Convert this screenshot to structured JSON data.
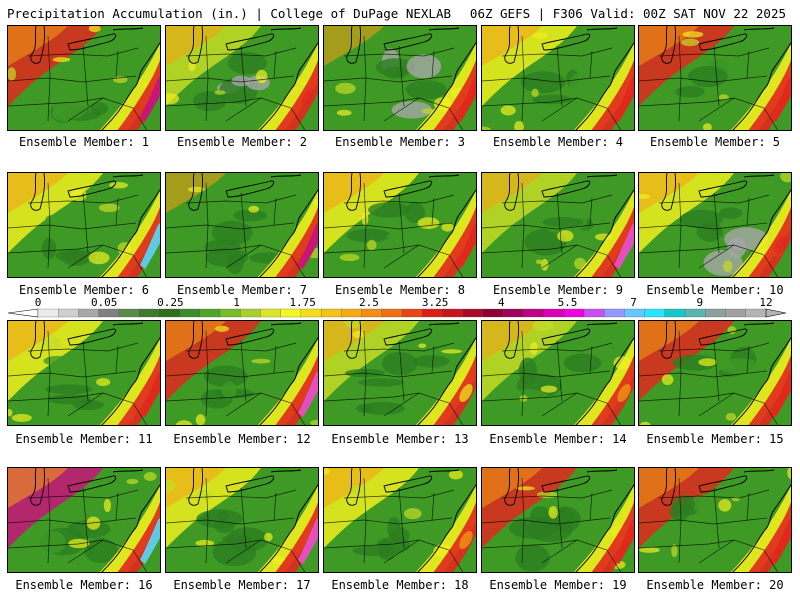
{
  "header": {
    "left": "Precipitation Accumulation (in.) | College of DuPage NEXLAB",
    "right": "06Z GEFS | F306 Valid: 00Z SAT NOV 22 2025"
  },
  "member_label_prefix": "Ensemble Member: ",
  "members": [
    {
      "label": "Ensemble Member: 1",
      "number": 1,
      "dominant": "red/orange west, green central, magenta offshore"
    },
    {
      "label": "Ensemble Member: 2",
      "number": 2,
      "dominant": "green with gray central"
    },
    {
      "label": "Ensemble Member: 3",
      "number": 3,
      "dominant": "green with gray, red southeast"
    },
    {
      "label": "Ensemble Member: 4",
      "number": 4,
      "dominant": "green/yellow, red northeast"
    },
    {
      "label": "Ensemble Member: 5",
      "number": 5,
      "dominant": "red north, green central"
    },
    {
      "label": "Ensemble Member: 6",
      "number": 6,
      "dominant": "yellow north, green south, cyan offshore"
    },
    {
      "label": "Ensemble Member: 7",
      "number": 7,
      "dominant": "green, magenta offshore"
    },
    {
      "label": "Ensemble Member: 8",
      "number": 8,
      "dominant": "green/yellow, red southeast"
    },
    {
      "label": "Ensemble Member: 9",
      "number": 9,
      "dominant": "yellow/green, magenta northeast"
    },
    {
      "label": "Ensemble Member: 10",
      "number": 10,
      "dominant": "green with gray central, yellow north"
    },
    {
      "label": "Ensemble Member: 11",
      "number": 11,
      "dominant": "green/yellow, red southeast"
    },
    {
      "label": "Ensemble Member: 12",
      "number": 12,
      "dominant": "red north, green central, magenta offshore"
    },
    {
      "label": "Ensemble Member: 13",
      "number": 13,
      "dominant": "green, yellow east"
    },
    {
      "label": "Ensemble Member: 14",
      "number": 14,
      "dominant": "green with yellow"
    },
    {
      "label": "Ensemble Member: 15",
      "number": 15,
      "dominant": "yellow/red, green central"
    },
    {
      "label": "Ensemble Member: 16",
      "number": 16,
      "dominant": "red/magenta northwest, cyan offshore"
    },
    {
      "label": "Ensemble Member: 17",
      "number": 17,
      "dominant": "yellow west, green, magenta offshore"
    },
    {
      "label": "Ensemble Member: 18",
      "number": 18,
      "dominant": "green, yellow west"
    },
    {
      "label": "Ensemble Member: 19",
      "number": 19,
      "dominant": "green, red southwest"
    },
    {
      "label": "Ensemble Member: 20",
      "number": 20,
      "dominant": "red north, green central"
    }
  ],
  "colorbar": {
    "tick_labels": [
      "0",
      "0.05",
      "0.25",
      "1",
      "1.75",
      "2.5",
      "3.25",
      "4",
      "5.5",
      "7",
      "9",
      "12"
    ],
    "colors": [
      "#ebebeb",
      "#cfcfcf",
      "#a8a8a8",
      "#808080",
      "#5a8a4a",
      "#3f7a2f",
      "#2e6e1e",
      "#3c8c28",
      "#52a428",
      "#78bc28",
      "#a8d02a",
      "#dce628",
      "#f5f523",
      "#f5dc19",
      "#f5c314",
      "#f5aa14",
      "#f58c14",
      "#f06e14",
      "#e64614",
      "#dc1e14",
      "#c8141e",
      "#aa0a28",
      "#8c0032",
      "#a0005a",
      "#be0082",
      "#dc00b4",
      "#f000dc",
      "#c850f0",
      "#9696ff",
      "#64c8ff",
      "#28e6ff",
      "#14c8c8",
      "#5ab4b4",
      "#8ca0a0",
      "#a0a0a0",
      "#b4b4b4"
    ]
  },
  "colors": {
    "gray": "#a6a6a6",
    "dark_green": "#2c7d1f",
    "green": "#3e9a25",
    "light_green": "#7cc22a",
    "yellow_green": "#c4dc26",
    "yellow": "#f0f01e",
    "orange": "#f5a014",
    "red": "#e1281e",
    "magenta": "#c8147a",
    "pink": "#e650c8",
    "cyan": "#5ad2f0",
    "border": "#000000"
  }
}
